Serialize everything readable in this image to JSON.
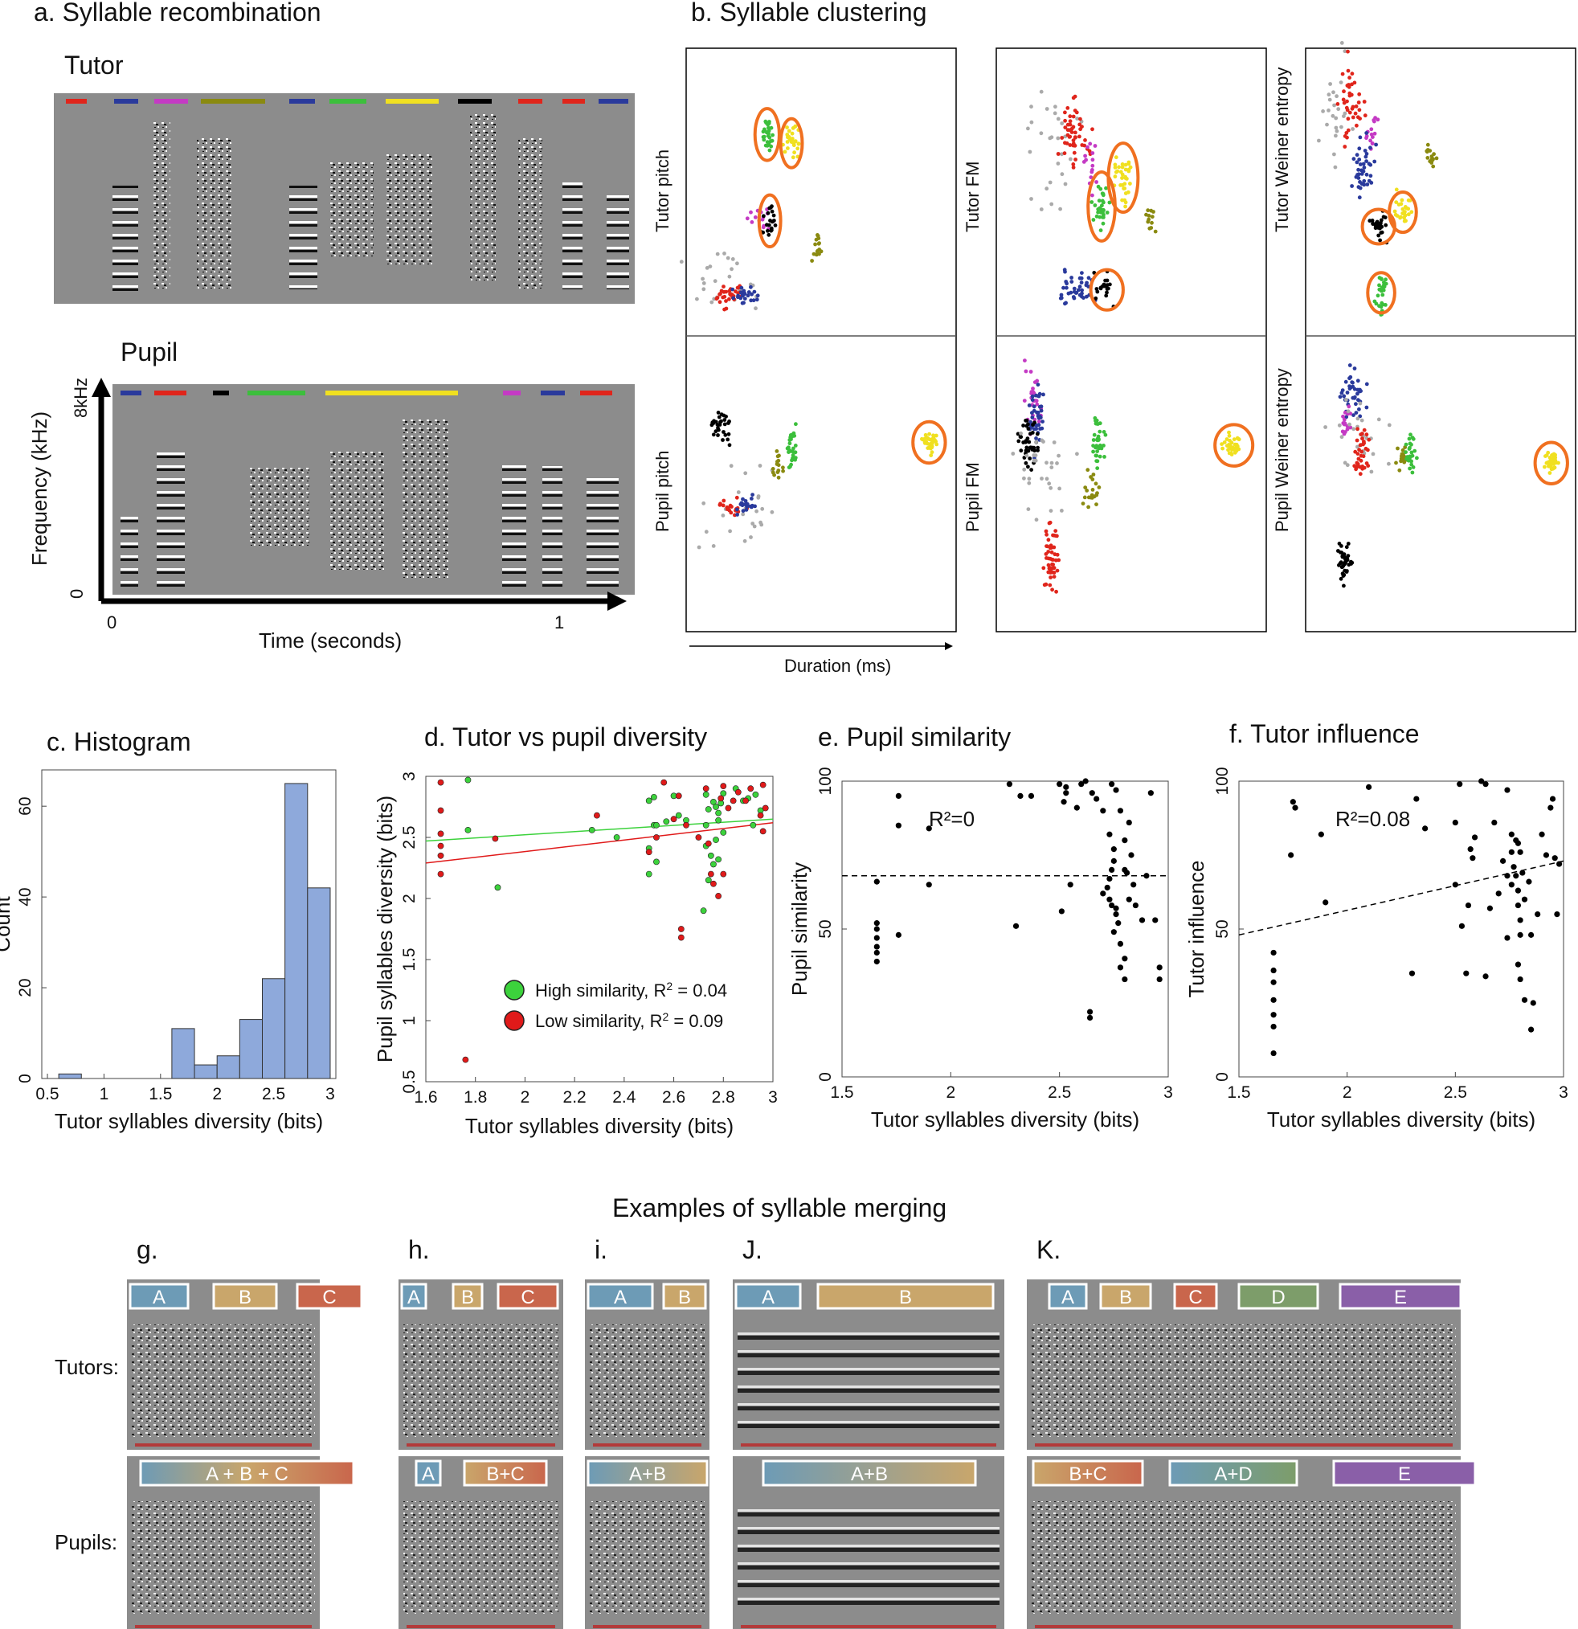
{
  "panels": {
    "a": {
      "title": "a. Syllable recombination",
      "tutor_label": "Tutor",
      "pupil_label": "Pupil",
      "y_axis_label": "Frequency (kHz)",
      "y_top": "8kHz",
      "y_bottom": "0",
      "x_axis_label": "Time (seconds)",
      "x_left": "0",
      "x_right": "1",
      "tutor_bar_colors": [
        "#e0251b",
        "#2a3a9c",
        "#c43ac4",
        "#8a8a10",
        "#2a3a9c",
        "#3cbf3c",
        "#f0e020",
        "#000000",
        "#e0251b",
        "#e0251b",
        "#2a3a9c"
      ],
      "pupil_bar_colors": [
        "#2a3a9c",
        "#e0251b",
        "#000000",
        "#3cbf3c",
        "#f0e020",
        "#c43ac4",
        "#2a3a9c",
        "#e0251b"
      ]
    },
    "b": {
      "title": "b. Syllable clustering",
      "x_axis_label": "Duration (ms)",
      "top_labels": [
        "Tutor pitch",
        "Tutor FM",
        "Tutor Weiner entropy"
      ],
      "bottom_labels": [
        "Pupil pitch",
        "Pupil FM",
        "Pupil Weiner entropy"
      ],
      "cluster_colors": {
        "gray": "#aaaaaa",
        "red": "#e0251b",
        "blue": "#2a3a9c",
        "magenta": "#c43ac4",
        "black": "#000000",
        "green": "#3cbf3c",
        "yellow": "#f0e020",
        "olive": "#8a8a10",
        "circle": "#f07020"
      }
    },
    "c": {
      "title": "c. Histogram",
      "chart_data": {
        "type": "bar",
        "title": "c. Histogram",
        "xlabel": "Tutor syllables diversity (bits)",
        "ylabel": "Count",
        "bin_edges": [
          0.6,
          0.8,
          1.0,
          1.2,
          1.4,
          1.6,
          1.8,
          2.0,
          2.2,
          2.4,
          2.6,
          2.8,
          3.0
        ],
        "values": [
          1,
          0,
          0,
          0,
          0,
          11,
          3,
          5,
          13,
          22,
          65,
          42
        ],
        "xlim": [
          0.45,
          3.05
        ],
        "ylim": [
          0,
          68
        ],
        "xticks": [
          "0.5",
          "1",
          "1.5",
          "2",
          "2.5",
          "3"
        ],
        "yticks": [
          "0",
          "20",
          "40",
          "60"
        ],
        "bar_color": "#8ea9db"
      }
    },
    "d": {
      "title": "d. Tutor vs pupil diversity",
      "legend_high": "High similarity, R",
      "legend_high_r2": " = 0.04",
      "legend_low": "Low similarity,  R",
      "legend_low_r2": " = 0.09",
      "superscript": "2",
      "chart_data": {
        "type": "scatter",
        "xlabel": "Tutor syllables diversity (bits)",
        "ylabel": "Pupil syllables diversity (bits)",
        "xlim": [
          1.6,
          3.0
        ],
        "ylim": [
          0.5,
          3.0
        ],
        "xticks": [
          "1.6",
          "1.8",
          "2",
          "2.2",
          "2.4",
          "2.6",
          "2.8",
          "3"
        ],
        "yticks": [
          "0.5",
          "1",
          "1.5",
          "2",
          "2.5",
          "3"
        ],
        "series": [
          {
            "name": "High similarity",
            "color": "#3cd23c",
            "fit": [
              1.6,
              2.47,
              3.0,
              2.65
            ],
            "points": [
              [
                1.77,
                2.97
              ],
              [
                1.77,
                2.56
              ],
              [
                1.89,
                2.09
              ],
              [
                2.27,
                2.56
              ],
              [
                2.37,
                2.5
              ],
              [
                2.5,
                2.8
              ],
              [
                2.52,
                2.83
              ],
              [
                2.52,
                2.6
              ],
              [
                2.53,
                2.6
              ],
              [
                2.5,
                2.41
              ],
              [
                2.53,
                2.3
              ],
              [
                2.5,
                2.2
              ],
              [
                2.57,
                2.63
              ],
              [
                2.6,
                2.84
              ],
              [
                2.62,
                2.68
              ],
              [
                2.65,
                2.64
              ],
              [
                2.73,
                2.6
              ],
              [
                2.73,
                2.85
              ],
              [
                2.74,
                2.73
              ],
              [
                2.76,
                2.79
              ],
              [
                2.77,
                2.75
              ],
              [
                2.78,
                2.7
              ],
              [
                2.79,
                2.78
              ],
              [
                2.78,
                2.64
              ],
              [
                2.8,
                2.54
              ],
              [
                2.73,
                2.43
              ],
              [
                2.75,
                2.35
              ],
              [
                2.78,
                2.32
              ],
              [
                2.76,
                2.28
              ],
              [
                2.74,
                2.15
              ],
              [
                2.72,
                1.9
              ],
              [
                2.85,
                2.9
              ],
              [
                2.88,
                2.8
              ],
              [
                2.9,
                2.82
              ],
              [
                2.92,
                2.6
              ],
              [
                2.95,
                2.72
              ],
              [
                2.93,
                2.85
              ],
              [
                2.8,
                2.86
              ],
              [
                2.77,
                2.48
              ]
            ]
          },
          {
            "name": "Low similarity",
            "color": "#e01a1a",
            "fit": [
              1.6,
              2.29,
              3.0,
              2.62
            ],
            "points": [
              [
                1.66,
                2.95
              ],
              [
                1.66,
                2.72
              ],
              [
                1.66,
                2.53
              ],
              [
                1.66,
                2.43
              ],
              [
                1.66,
                2.35
              ],
              [
                1.66,
                2.2
              ],
              [
                1.76,
                0.68
              ],
              [
                1.88,
                2.49
              ],
              [
                2.29,
                2.68
              ],
              [
                2.5,
                2.38
              ],
              [
                2.53,
                2.5
              ],
              [
                2.56,
                2.95
              ],
              [
                2.6,
                2.65
              ],
              [
                2.62,
                2.84
              ],
              [
                2.63,
                1.75
              ],
              [
                2.63,
                1.68
              ],
              [
                2.65,
                2.6
              ],
              [
                2.7,
                2.5
              ],
              [
                2.73,
                2.9
              ],
              [
                2.75,
                2.2
              ],
              [
                2.76,
                2.12
              ],
              [
                2.78,
                2.02
              ],
              [
                2.74,
                2.45
              ],
              [
                2.79,
                2.82
              ],
              [
                2.82,
                2.74
              ],
              [
                2.84,
                2.8
              ],
              [
                2.86,
                2.87
              ],
              [
                2.89,
                2.8
              ],
              [
                2.91,
                2.9
              ],
              [
                2.95,
                2.68
              ],
              [
                2.96,
                2.93
              ],
              [
                2.97,
                2.74
              ],
              [
                2.96,
                2.55
              ],
              [
                2.8,
                2.92
              ],
              [
                2.8,
                2.2
              ]
            ]
          }
        ]
      }
    },
    "e": {
      "title": "e. Pupil similarity",
      "r2": "R²=0",
      "chart_data": {
        "type": "scatter",
        "xlabel": "Tutor syllables diversity (bits)",
        "ylabel": "Pupil similarity",
        "xlim": [
          1.5,
          3.0
        ],
        "ylim": [
          0,
          100
        ],
        "xticks": [
          "1.5",
          "2",
          "2.5",
          "3"
        ],
        "yticks": [
          "0",
          "50",
          "100"
        ],
        "fit": [
          1.5,
          68,
          3.0,
          68
        ],
        "points": [
          [
            1.66,
            66
          ],
          [
            1.66,
            52
          ],
          [
            1.66,
            50
          ],
          [
            1.66,
            47
          ],
          [
            1.66,
            44
          ],
          [
            1.66,
            42
          ],
          [
            1.66,
            39
          ],
          [
            1.76,
            95
          ],
          [
            1.76,
            85
          ],
          [
            1.76,
            48
          ],
          [
            1.9,
            84
          ],
          [
            1.9,
            65
          ],
          [
            2.27,
            99
          ],
          [
            2.3,
            51
          ],
          [
            2.32,
            95
          ],
          [
            2.37,
            95
          ],
          [
            2.5,
            99
          ],
          [
            2.51,
            56
          ],
          [
            2.52,
            93
          ],
          [
            2.53,
            96
          ],
          [
            2.53,
            98
          ],
          [
            2.55,
            65
          ],
          [
            2.58,
            91
          ],
          [
            2.6,
            99
          ],
          [
            2.62,
            100
          ],
          [
            2.64,
            22
          ],
          [
            2.64,
            20
          ],
          [
            2.65,
            96
          ],
          [
            2.67,
            94
          ],
          [
            2.7,
            90
          ],
          [
            2.73,
            82
          ],
          [
            2.74,
            99
          ],
          [
            2.76,
            97
          ],
          [
            2.75,
            77
          ],
          [
            2.75,
            73
          ],
          [
            2.74,
            70
          ],
          [
            2.73,
            67
          ],
          [
            2.72,
            64
          ],
          [
            2.73,
            60
          ],
          [
            2.74,
            58
          ],
          [
            2.76,
            55
          ],
          [
            2.77,
            52
          ],
          [
            2.75,
            49
          ],
          [
            2.78,
            45
          ],
          [
            2.8,
            40
          ],
          [
            2.8,
            33
          ],
          [
            2.78,
            37
          ],
          [
            2.8,
            70
          ],
          [
            2.82,
            60
          ],
          [
            2.84,
            65
          ],
          [
            2.85,
            58
          ],
          [
            2.8,
            80
          ],
          [
            2.83,
            75
          ],
          [
            2.82,
            86
          ],
          [
            2.78,
            90
          ],
          [
            2.9,
            68
          ],
          [
            2.92,
            96
          ],
          [
            2.94,
            53
          ],
          [
            2.96,
            37
          ],
          [
            2.96,
            33
          ],
          [
            2.88,
            53
          ],
          [
            2.76,
            57
          ],
          [
            2.7,
            62
          ],
          [
            2.81,
            69
          ]
        ]
      }
    },
    "f": {
      "title": "f. Tutor influence",
      "r2": "R²=0.08",
      "chart_data": {
        "type": "scatter",
        "xlabel": "Tutor syllables diversity (bits)",
        "ylabel": "Tutor influence",
        "xlim": [
          1.5,
          3.0
        ],
        "ylim": [
          0,
          100
        ],
        "xticks": [
          "1.5",
          "2",
          "2.5",
          "3"
        ],
        "yticks": [
          "0",
          "50",
          "100"
        ],
        "fit": [
          1.5,
          48,
          3.0,
          73
        ],
        "points": [
          [
            1.66,
            42
          ],
          [
            1.66,
            36
          ],
          [
            1.66,
            32
          ],
          [
            1.66,
            26
          ],
          [
            1.66,
            21
          ],
          [
            1.66,
            17
          ],
          [
            1.66,
            8
          ],
          [
            1.75,
            93
          ],
          [
            1.76,
            91
          ],
          [
            1.74,
            75
          ],
          [
            1.88,
            82
          ],
          [
            1.9,
            59
          ],
          [
            2.1,
            98
          ],
          [
            2.3,
            35
          ],
          [
            2.36,
            84
          ],
          [
            2.32,
            94
          ],
          [
            2.5,
            86
          ],
          [
            2.5,
            65
          ],
          [
            2.52,
            99
          ],
          [
            2.53,
            51
          ],
          [
            2.55,
            35
          ],
          [
            2.56,
            58
          ],
          [
            2.57,
            77
          ],
          [
            2.58,
            74
          ],
          [
            2.59,
            81
          ],
          [
            2.62,
            100
          ],
          [
            2.64,
            99
          ],
          [
            2.64,
            34
          ],
          [
            2.66,
            57
          ],
          [
            2.68,
            86
          ],
          [
            2.7,
            62
          ],
          [
            2.72,
            73
          ],
          [
            2.74,
            97
          ],
          [
            2.76,
            65
          ],
          [
            2.76,
            82
          ],
          [
            2.76,
            76
          ],
          [
            2.77,
            71
          ],
          [
            2.78,
            68
          ],
          [
            2.79,
            63
          ],
          [
            2.79,
            58
          ],
          [
            2.8,
            53
          ],
          [
            2.8,
            48
          ],
          [
            2.79,
            38
          ],
          [
            2.8,
            33
          ],
          [
            2.82,
            26
          ],
          [
            2.85,
            16
          ],
          [
            2.86,
            25
          ],
          [
            2.85,
            48
          ],
          [
            2.88,
            55
          ],
          [
            2.9,
            82
          ],
          [
            2.92,
            75
          ],
          [
            2.94,
            91
          ],
          [
            2.95,
            94
          ],
          [
            2.97,
            55
          ],
          [
            2.78,
            80
          ],
          [
            2.8,
            76
          ],
          [
            2.82,
            60
          ],
          [
            2.84,
            66
          ],
          [
            2.96,
            74
          ],
          [
            2.98,
            72
          ],
          [
            2.74,
            47
          ],
          [
            2.74,
            68
          ],
          [
            2.79,
            79
          ],
          [
            2.81,
            69
          ]
        ]
      }
    },
    "merging": {
      "title": "Examples of syllable merging",
      "row_labels": [
        "Tutors:",
        "Pupils:"
      ],
      "examples": [
        {
          "letter": "g.",
          "tutor_boxes": [
            "A",
            "B",
            "C"
          ],
          "pupil_boxes": [
            "A   +   B   +   C"
          ]
        },
        {
          "letter": "h.",
          "tutor_boxes": [
            "A",
            "B",
            "C"
          ],
          "pupil_boxes": [
            "A",
            "B+C"
          ]
        },
        {
          "letter": "i.",
          "tutor_boxes": [
            "A",
            "B"
          ],
          "pupil_boxes": [
            "A+B"
          ]
        },
        {
          "letter": "J.",
          "tutor_boxes": [
            "A",
            "B"
          ],
          "pupil_boxes": [
            "A+B"
          ]
        },
        {
          "letter": "K.",
          "tutor_boxes": [
            "A",
            "B",
            "C",
            "D",
            "E"
          ],
          "pupil_boxes": [
            "B+C",
            "A+D",
            "E"
          ]
        }
      ],
      "box_colors": {
        "A": "#6d9bb6",
        "B": "#c9a66b",
        "C": "#c9664c",
        "D": "#7d9d6a",
        "E": "#8a5fa8"
      }
    }
  }
}
